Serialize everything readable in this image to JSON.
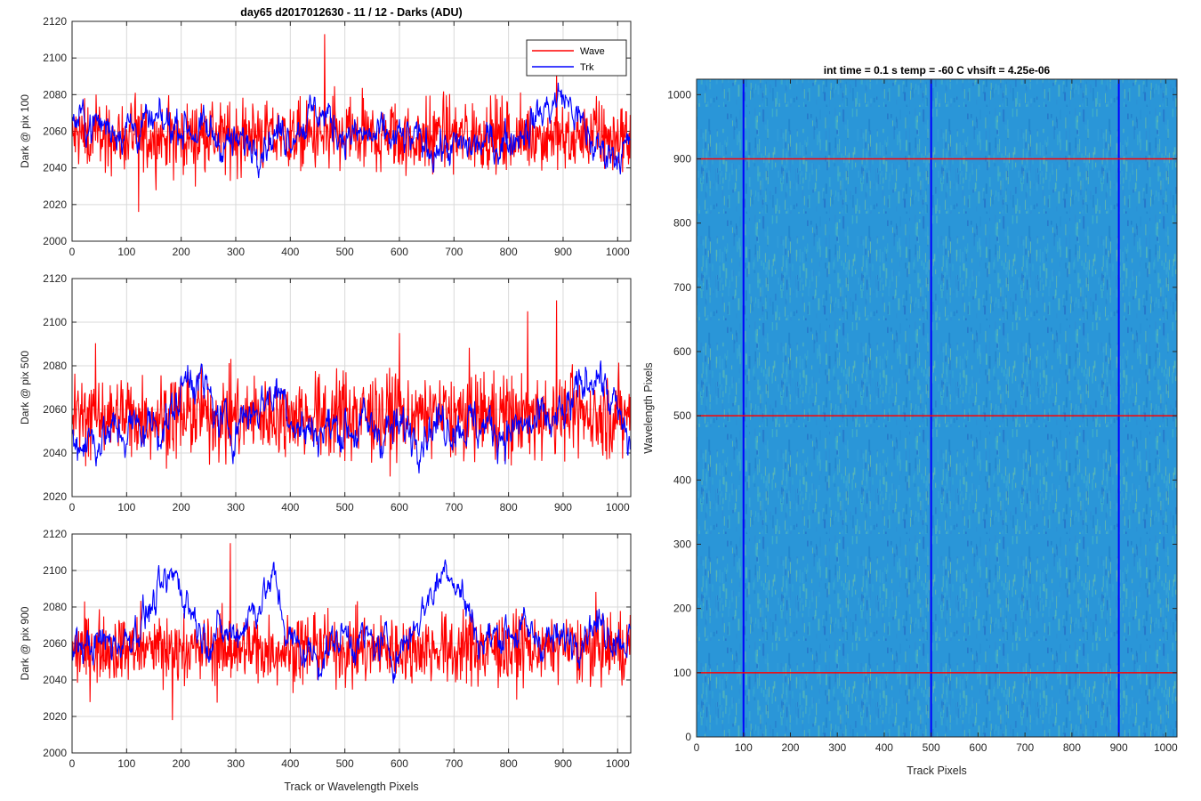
{
  "figure_title": "day65 d2017012630 - 11 / 12 - Darks (ADU)",
  "colors": {
    "wave": "#ff0000",
    "trk": "#0000ff",
    "grid": "#d9d9d9",
    "axis": "#262626"
  },
  "chart_data": [
    {
      "type": "line",
      "title": "day65 d2017012630 - 11 / 12 - Darks (ADU)",
      "ylabel": "Dark @ pix 100",
      "xlabel": "",
      "xlim": [
        0,
        1024
      ],
      "ylim": [
        2000,
        2120
      ],
      "xticks": [
        "0",
        "100",
        "200",
        "300",
        "400",
        "500",
        "600",
        "700",
        "800",
        "900",
        "1000"
      ],
      "yticks": [
        "2000",
        "2020",
        "2040",
        "2060",
        "2080",
        "2100",
        "2120"
      ],
      "grid": true,
      "legend": "top-right",
      "series": [
        {
          "name": "Wave",
          "color": "#ff0000",
          "mean": 2057,
          "noise": 11,
          "lo": 2016,
          "hi": 2113,
          "spikes": [
            [
              122,
              2016
            ],
            [
              463,
              2113
            ],
            [
              888,
              2092
            ]
          ]
        },
        {
          "name": "Trk",
          "color": "#0000ff",
          "mean": 2058,
          "noise": 7,
          "lo": 2022,
          "hi": 2090,
          "drift": [
            [
              0,
              2066
            ],
            [
              100,
              2062
            ],
            [
              200,
              2064
            ],
            [
              300,
              2052
            ],
            [
              400,
              2060
            ],
            [
              450,
              2072
            ],
            [
              500,
              2058
            ],
            [
              600,
              2055
            ],
            [
              700,
              2050
            ],
            [
              800,
              2055
            ],
            [
              900,
              2080
            ],
            [
              960,
              2050
            ],
            [
              1024,
              2050
            ]
          ]
        }
      ]
    },
    {
      "type": "line",
      "title": "",
      "ylabel": "Dark @ pix 500",
      "xlabel": "",
      "xlim": [
        0,
        1024
      ],
      "ylim": [
        2020,
        2120
      ],
      "xticks": [
        "0",
        "100",
        "200",
        "300",
        "400",
        "500",
        "600",
        "700",
        "800",
        "900",
        "1000"
      ],
      "yticks": [
        "2020",
        "2040",
        "2060",
        "2080",
        "2100",
        "2120"
      ],
      "grid": true,
      "legend": "none",
      "series": [
        {
          "name": "Wave",
          "color": "#ff0000",
          "mean": 2057,
          "noise": 11,
          "lo": 2025,
          "hi": 2110,
          "spikes": [
            [
              888,
              2110
            ],
            [
              835,
              2105
            ],
            [
              600,
              2095
            ]
          ]
        },
        {
          "name": "Trk",
          "color": "#0000ff",
          "mean": 2050,
          "noise": 7,
          "lo": 2022,
          "hi": 2087,
          "drift": [
            [
              0,
              2045
            ],
            [
              100,
              2050
            ],
            [
              180,
              2055
            ],
            [
              220,
              2080
            ],
            [
              280,
              2050
            ],
            [
              380,
              2070
            ],
            [
              420,
              2050
            ],
            [
              500,
              2052
            ],
            [
              600,
              2050
            ],
            [
              700,
              2055
            ],
            [
              800,
              2050
            ],
            [
              900,
              2055
            ],
            [
              960,
              2080
            ],
            [
              1024,
              2042
            ]
          ]
        }
      ]
    },
    {
      "type": "line",
      "title": "",
      "ylabel": "Dark @ pix 900",
      "xlabel": "Track or Wavelength Pixels",
      "xlim": [
        0,
        1024
      ],
      "ylim": [
        2000,
        2120
      ],
      "xticks": [
        "0",
        "100",
        "200",
        "300",
        "400",
        "500",
        "600",
        "700",
        "800",
        "900",
        "1000"
      ],
      "yticks": [
        "2000",
        "2020",
        "2040",
        "2060",
        "2080",
        "2100",
        "2120"
      ],
      "grid": true,
      "legend": "none",
      "series": [
        {
          "name": "Wave",
          "color": "#ff0000",
          "mean": 2057,
          "noise": 11,
          "lo": 2018,
          "hi": 2115,
          "spikes": [
            [
              290,
              2115
            ],
            [
              184,
              2018
            ]
          ]
        },
        {
          "name": "Trk",
          "color": "#0000ff",
          "mean": 2062,
          "noise": 7,
          "lo": 2035,
          "hi": 2110,
          "drift": [
            [
              0,
              2058
            ],
            [
              100,
              2062
            ],
            [
              190,
              2098
            ],
            [
              240,
              2065
            ],
            [
              300,
              2065
            ],
            [
              370,
              2095
            ],
            [
              400,
              2060
            ],
            [
              450,
              2052
            ],
            [
              500,
              2065
            ],
            [
              600,
              2055
            ],
            [
              690,
              2105
            ],
            [
              750,
              2060
            ],
            [
              800,
              2068
            ],
            [
              900,
              2060
            ],
            [
              950,
              2072
            ],
            [
              1024,
              2062
            ]
          ]
        }
      ]
    },
    {
      "type": "heatmap",
      "title": "int time = 0.1 s   temp = -60 C   vhsift = 4.25e-06",
      "xlabel": "Track Pixels",
      "ylabel": "Wavelength Pixels",
      "xlim": [
        0,
        1024
      ],
      "ylim": [
        0,
        1024
      ],
      "xticks": [
        "0",
        "100",
        "200",
        "300",
        "400",
        "500",
        "600",
        "700",
        "800",
        "900",
        "1000"
      ],
      "yticks": [
        "0",
        "100",
        "200",
        "300",
        "400",
        "500",
        "600",
        "700",
        "800",
        "900",
        "1000"
      ],
      "colormap": "parula",
      "base_color": "#2a96d8",
      "vertical_lines": {
        "values": [
          100,
          500,
          900
        ],
        "color": "#0000ff"
      },
      "horizontal_lines": {
        "values": [
          100,
          500,
          900
        ],
        "color": "#ff0000"
      }
    }
  ]
}
